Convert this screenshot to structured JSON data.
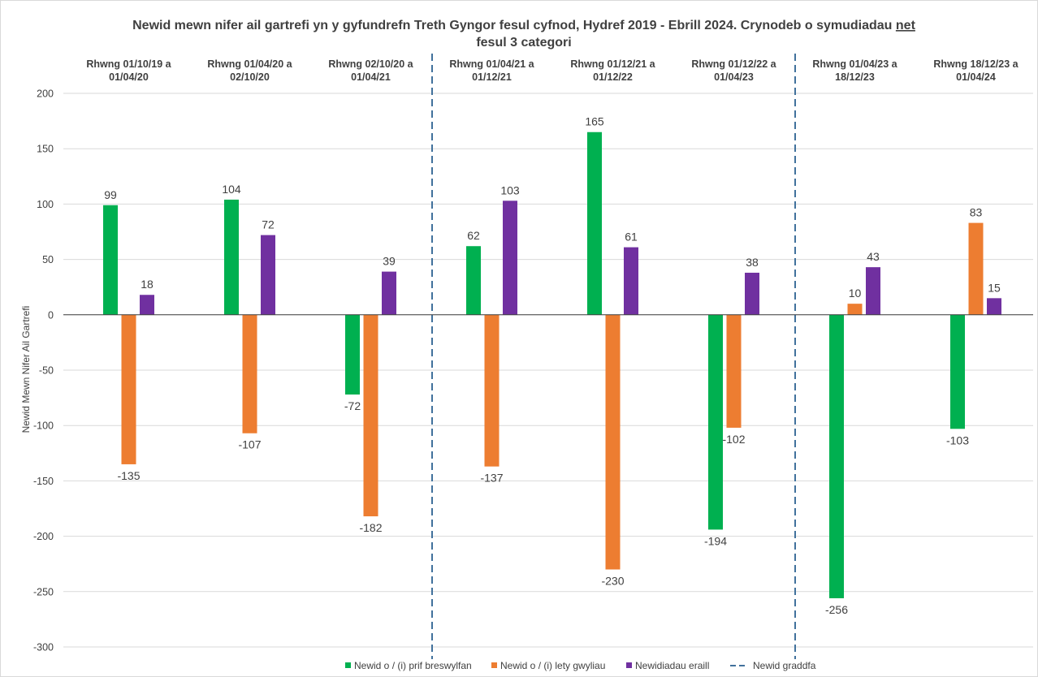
{
  "chart_data": {
    "type": "bar",
    "title_part1": "Newid mewn nifer ail gartrefi yn y gyfundrefn Treth Gyngor fesul cyfnod, Hydref 2019 - Ebrill 2024. Crynodeb o symudiadau",
    "title_underlined": "net",
    "title_line2": "fesul 3 categori",
    "ylabel": "Newid Mewn Nifer Ail Gartrefi",
    "ylim": [
      -300,
      200
    ],
    "yticks": [
      200,
      150,
      100,
      50,
      0,
      -50,
      -100,
      -150,
      -200,
      -250,
      -300
    ],
    "grid": true,
    "legend_position": "bottom",
    "categories": [
      [
        "Rhwng 01/10/19 a",
        "01/04/20"
      ],
      [
        "Rhwng 01/04/20 a",
        "02/10/20"
      ],
      [
        "Rhwng 02/10/20 a",
        "01/04/21"
      ],
      [
        "Rhwng 01/04/21 a",
        "01/12/21"
      ],
      [
        "Rhwng 01/12/21 a",
        "01/12/22"
      ],
      [
        "Rhwng 01/12/22 a",
        "01/04/23"
      ],
      [
        "Rhwng 01/04/23 a",
        "18/12/23"
      ],
      [
        "Rhwng 18/12/23 a",
        "01/04/24"
      ]
    ],
    "series": [
      {
        "name": "Newid o / (i) prif breswylfan",
        "color": "#00b050",
        "values": [
          99,
          104,
          -72,
          62,
          165,
          -194,
          -256,
          -103
        ]
      },
      {
        "name": "Newid o / (i) lety gwyliau",
        "color": "#ed7d31",
        "values": [
          -135,
          -107,
          -182,
          -137,
          -230,
          -102,
          10,
          83
        ]
      },
      {
        "name": "Newidiadau eraill",
        "color": "#7030a0",
        "values": [
          18,
          72,
          39,
          103,
          61,
          38,
          43,
          15
        ]
      }
    ],
    "scale_change": {
      "name": "Newid graddfa",
      "color": "#41719c",
      "after_category_index": [
        2,
        5
      ]
    }
  }
}
